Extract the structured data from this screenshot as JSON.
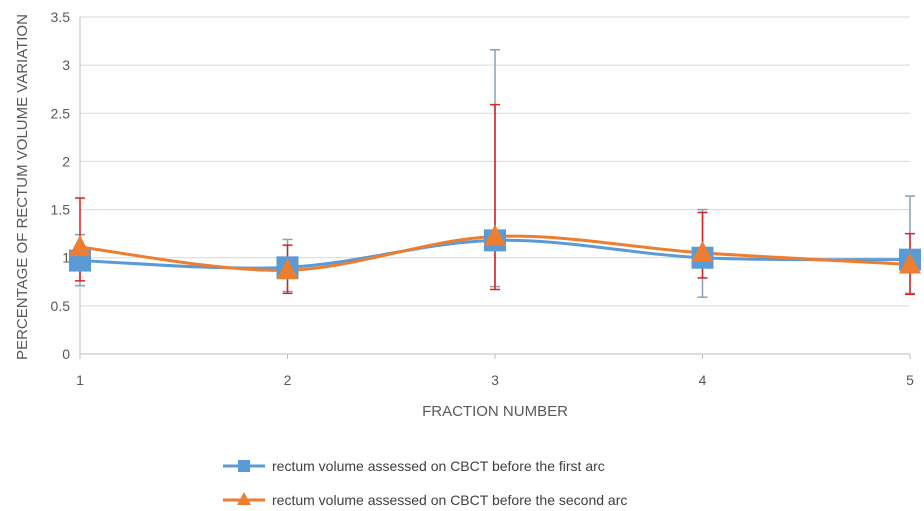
{
  "chart_data": {
    "type": "line",
    "title": "",
    "xlabel": "FRACTION NUMBER",
    "ylabel": "PERCENTAGE OF RECTUM VOLUME VARIATION",
    "x": [
      1,
      2,
      3,
      4,
      5
    ],
    "xticks": [
      "1",
      "2",
      "3",
      "4",
      "5"
    ],
    "ylim": [
      0,
      3.5
    ],
    "yticks": [
      "0",
      "0.5",
      "1",
      "1.5",
      "2",
      "2.5",
      "3",
      "3.5"
    ],
    "grid": true,
    "smooth": true,
    "legend_position": "bottom",
    "series": [
      {
        "name": "rectum volume assessed on CBCT before the first arc",
        "color": "#5b9bd5",
        "error_color": "#8aa0b8",
        "marker": "square",
        "values": [
          0.97,
          0.9,
          1.18,
          1.0,
          0.98
        ],
        "error_low": [
          0.71,
          0.65,
          0.7,
          0.59,
          0.63
        ],
        "error_high": [
          1.24,
          1.19,
          3.16,
          1.5,
          1.64
        ]
      },
      {
        "name": "rectum volume assessed on CBCT before the second arc",
        "color": "#ed7d31",
        "error_color": "#e02020",
        "marker": "triangle",
        "values": [
          1.11,
          0.87,
          1.22,
          1.05,
          0.93
        ],
        "error_low": [
          0.76,
          0.63,
          0.67,
          0.79,
          0.62
        ],
        "error_high": [
          1.62,
          1.13,
          2.59,
          1.47,
          1.25
        ]
      }
    ]
  }
}
